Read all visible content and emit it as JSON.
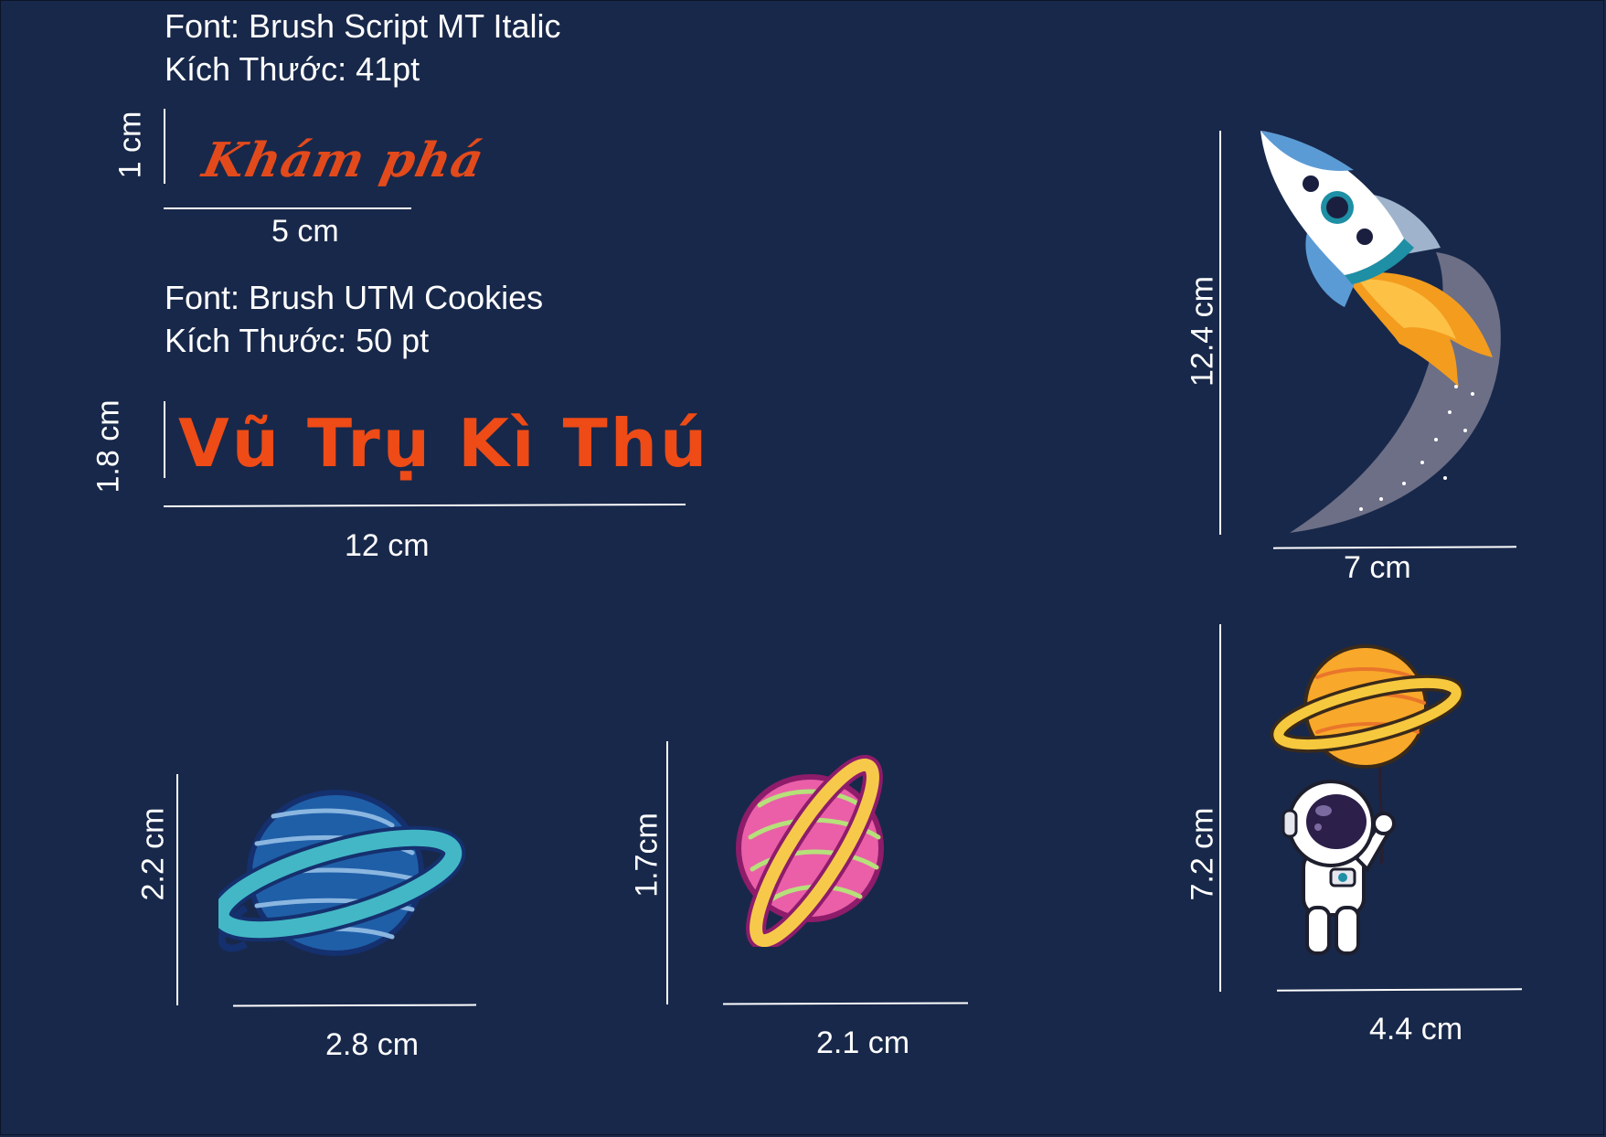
{
  "font_block_1": {
    "font_line": "Font: Brush Script MT Italic",
    "size_line": "Kích Thước: 41pt",
    "sample_text": "Khám phá",
    "height_dim": "1 cm",
    "width_dim": "5 cm"
  },
  "font_block_2": {
    "font_line": "Font: Brush UTM Cookies",
    "size_line": "Kích Thước: 50 pt",
    "sample_text": "Vũ Trụ Kì Thú",
    "height_dim": "1.8 cm",
    "width_dim": "12 cm"
  },
  "rocket": {
    "height_dim": "12.4 cm",
    "width_dim": "7 cm",
    "icon": "rocket-icon"
  },
  "blue_planet": {
    "height_dim": "2.2 cm",
    "width_dim": "2.8 cm",
    "icon": "blue-planet-icon"
  },
  "pink_planet": {
    "height_dim": "1.7cm",
    "width_dim": "2.1 cm",
    "icon": "pink-planet-icon"
  },
  "astronaut": {
    "height_dim": "7.2 cm",
    "width_dim": "4.4 cm",
    "icon": "astronaut-balloon-icon"
  },
  "colors": {
    "background": "#18284a",
    "text_accent": "#ee4b17",
    "dimension_lines": "#ffffff"
  }
}
